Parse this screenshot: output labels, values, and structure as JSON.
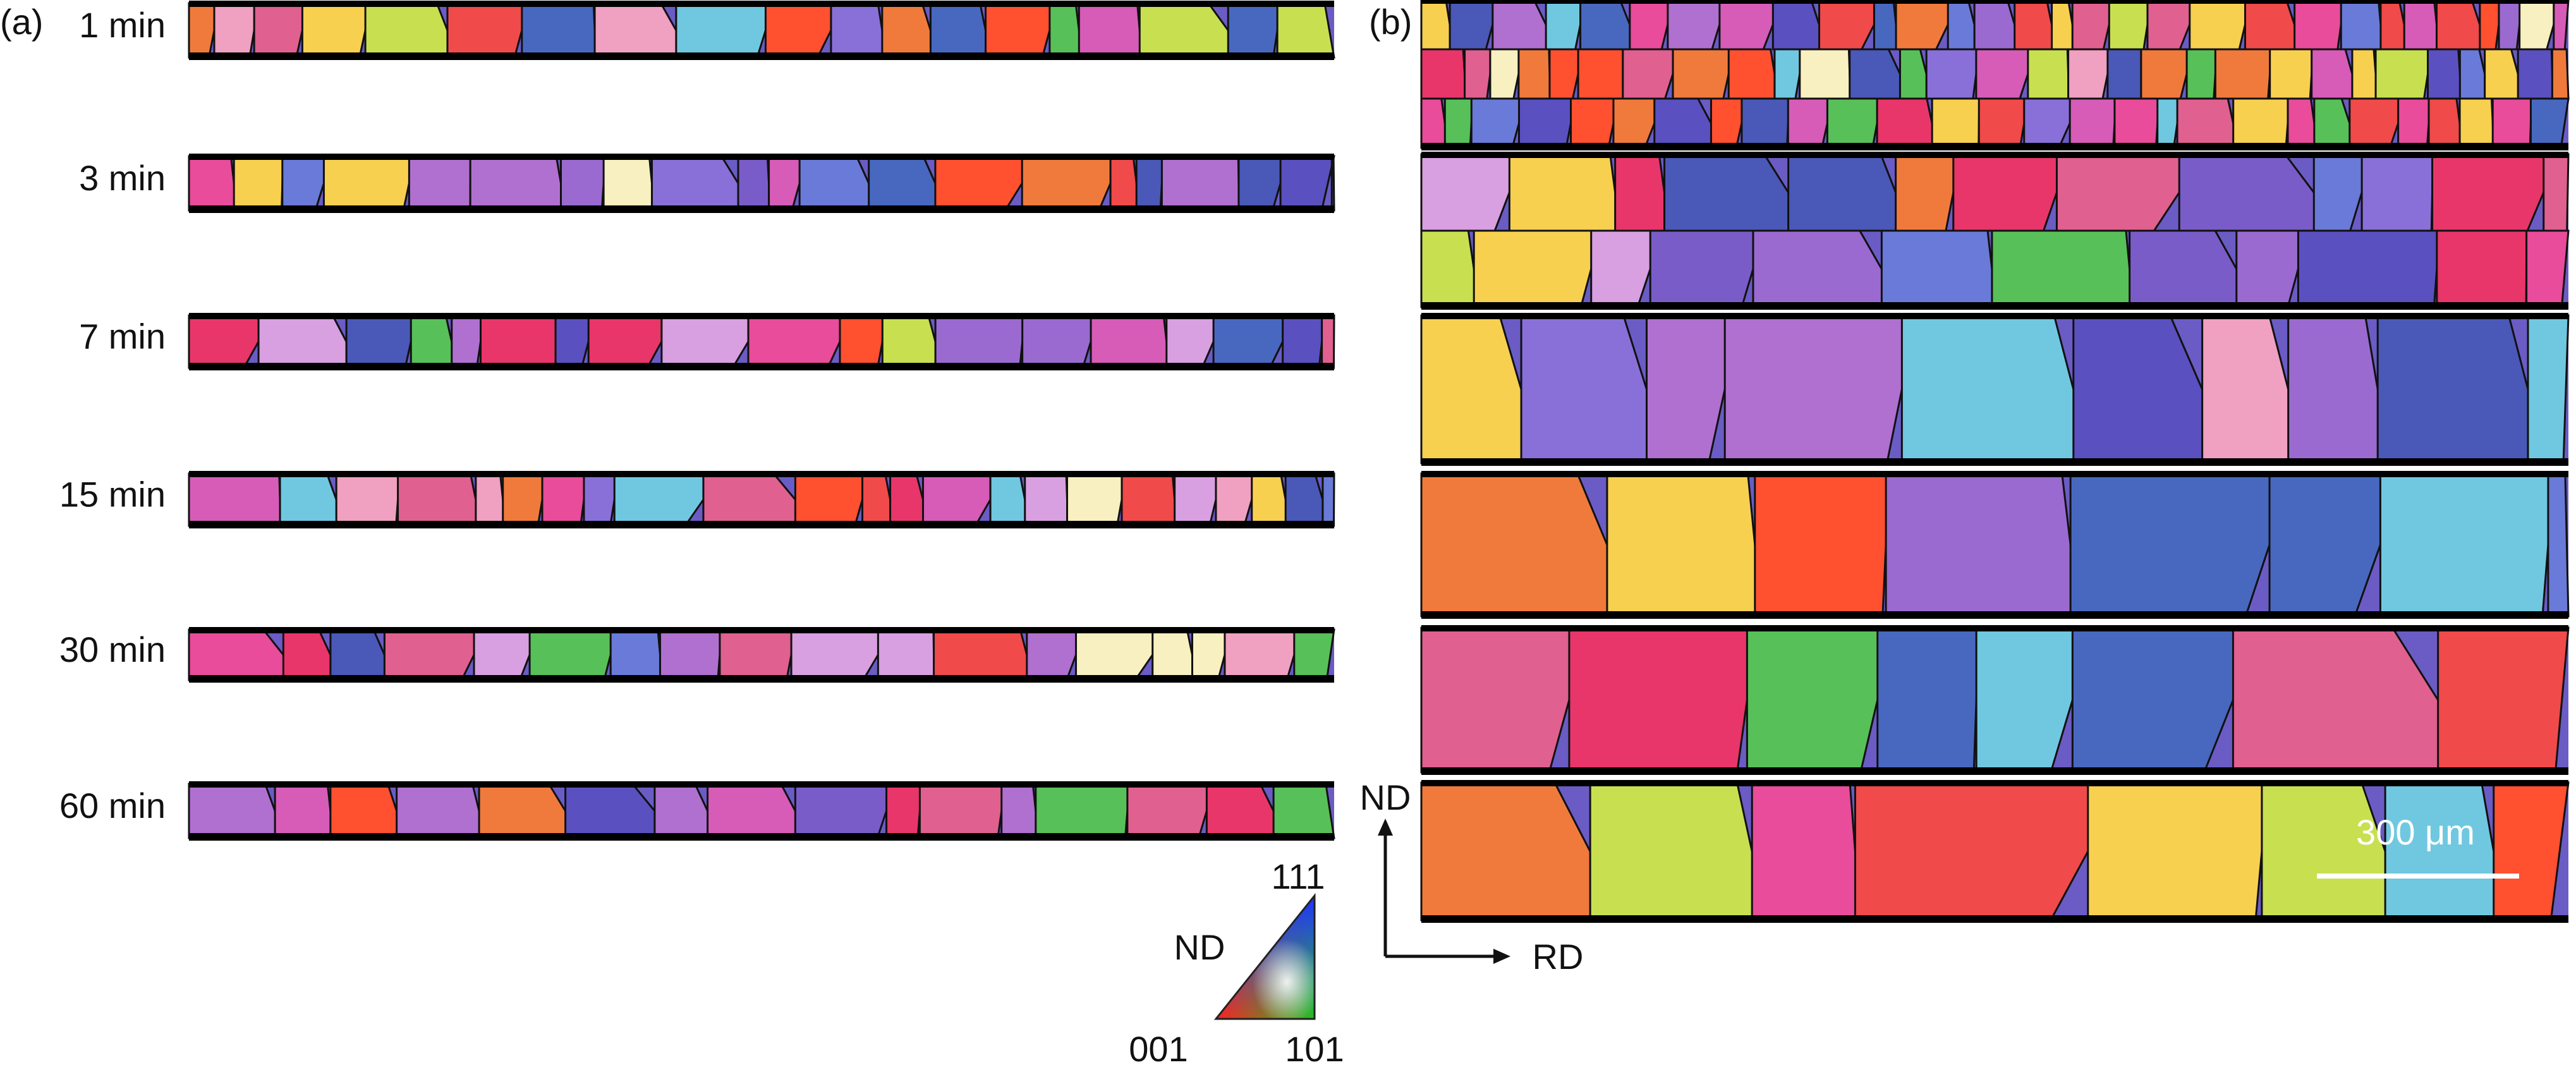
{
  "panel_a": {
    "label": "(a)",
    "rows": [
      "1 min",
      "3 min",
      "7 min",
      "15 min",
      "30 min",
      "60 min"
    ]
  },
  "panel_b": {
    "label": "(b)",
    "scale_bar": "300 μm",
    "axes": {
      "nd": "ND",
      "rd": "RD"
    }
  },
  "legend": {
    "title": "ND",
    "corners": {
      "top": "111",
      "left": "001",
      "right": "101"
    }
  }
}
